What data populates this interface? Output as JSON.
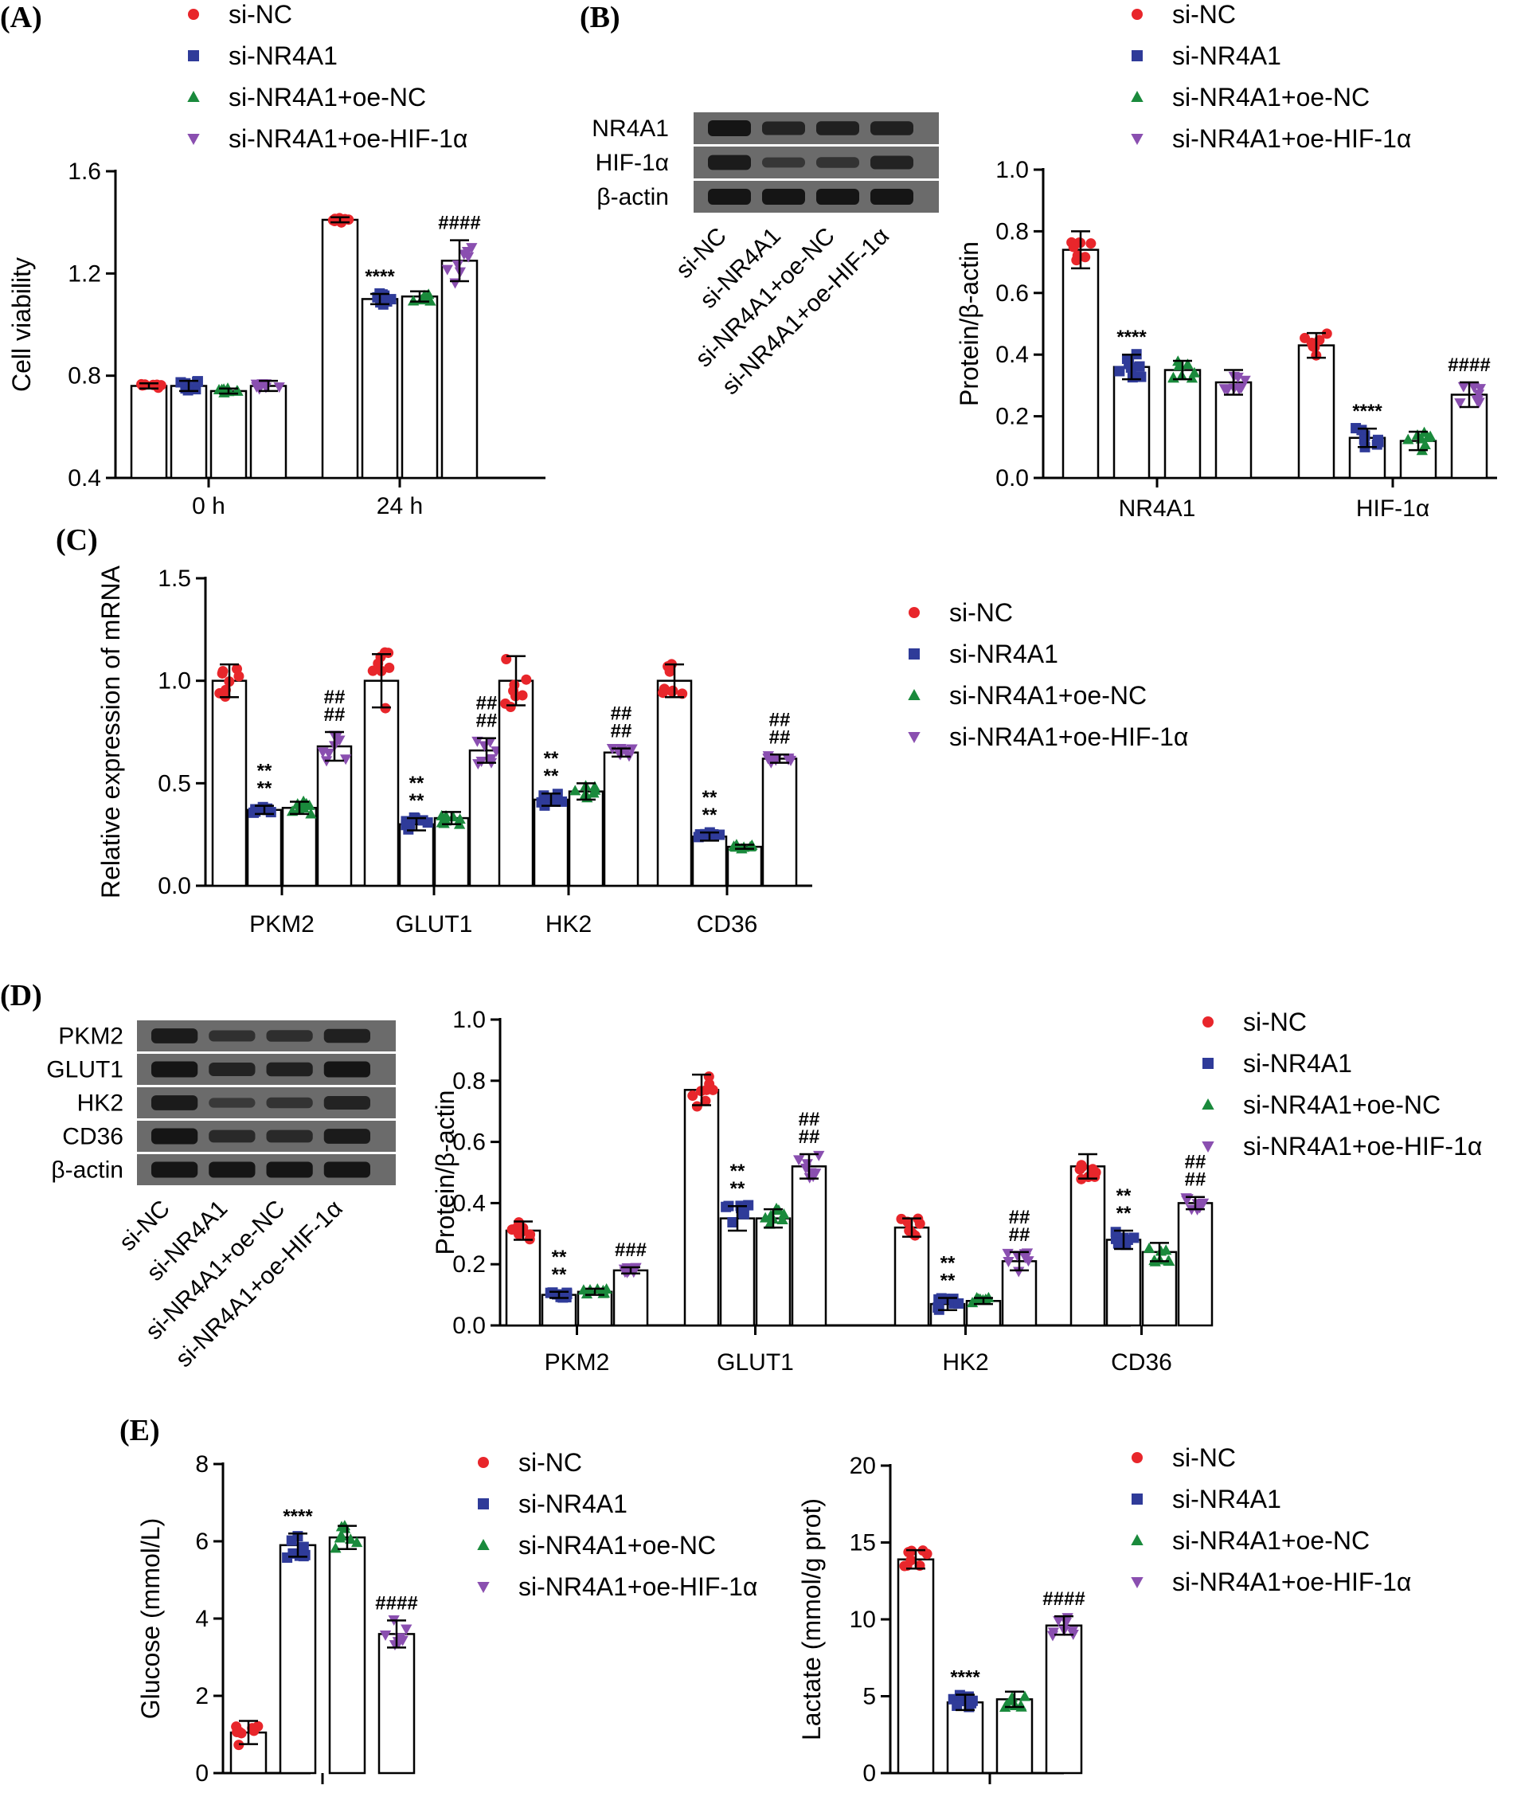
{
  "colors": {
    "si-NC": "#e8262b",
    "si-NR4A1": "#2f3b99",
    "si-NR4A1+oe-NC": "#1a8a3c",
    "si-NR4A1+oe-HIF-1α": "#8a4fb0"
  },
  "legend_entries": [
    "si-NC",
    "si-NR4A1",
    "si-NR4A1+oe-NC",
    "si-NR4A1+oe-HIF-1α"
  ],
  "panels": {
    "A": "(A)",
    "B": "(B)",
    "C": "(C)",
    "D": "(D)",
    "E": "(E)"
  },
  "blots": {
    "B": {
      "rows": [
        "NR4A1",
        "HIF-1α",
        "β-actin"
      ],
      "lanes": [
        "si-NC",
        "si-NR4A1",
        "si-NR4A1+oe-NC",
        "si-NR4A1+oe-HIF-1α"
      ],
      "intensity": [
        [
          1.0,
          0.75,
          0.8,
          0.8
        ],
        [
          0.9,
          0.4,
          0.45,
          0.75
        ],
        [
          1.0,
          1.0,
          1.0,
          1.0
        ]
      ]
    },
    "D": {
      "rows": [
        "PKM2",
        "GLUT1",
        "HK2",
        "CD36",
        "β-actin"
      ],
      "lanes": [
        "si-NC",
        "si-NR4A1",
        "si-NR4A1+oe-NC",
        "si-NR4A1+oe-HIF-1α"
      ],
      "intensity": [
        [
          0.9,
          0.5,
          0.55,
          0.8
        ],
        [
          1.0,
          0.75,
          0.8,
          1.0
        ],
        [
          0.9,
          0.35,
          0.45,
          0.75
        ],
        [
          1.0,
          0.65,
          0.65,
          0.9
        ],
        [
          1.0,
          1.0,
          1.0,
          1.0
        ]
      ]
    }
  },
  "chart_data": [
    {
      "id": "A",
      "type": "bar",
      "categories": [
        "0 h",
        "24 h"
      ],
      "series": [
        {
          "name": "si-NC",
          "values": [
            0.76,
            1.41
          ],
          "sd": [
            0.01,
            0.01
          ]
        },
        {
          "name": "si-NR4A1",
          "values": [
            0.76,
            1.1
          ],
          "sd": [
            0.02,
            0.02
          ]
        },
        {
          "name": "si-NR4A1+oe-NC",
          "values": [
            0.74,
            1.11
          ],
          "sd": [
            0.01,
            0.02
          ]
        },
        {
          "name": "si-NR4A1+oe-HIF-1α",
          "values": [
            0.76,
            1.25
          ],
          "sd": [
            0.02,
            0.08
          ]
        }
      ],
      "annotations": [
        [
          "",
          ""
        ],
        [
          "",
          "****"
        ],
        [
          "",
          ""
        ],
        [
          "",
          "####"
        ]
      ],
      "ylabel": "Cell viability",
      "xlabel": "",
      "ylim": [
        0.4,
        1.6
      ],
      "yticks": [
        "0.4",
        "0.8",
        "1.2",
        "1.6"
      ]
    },
    {
      "id": "B",
      "type": "bar",
      "categories": [
        "NR4A1",
        "HIF-1α"
      ],
      "series": [
        {
          "name": "si-NC",
          "values": [
            0.74,
            0.43
          ],
          "sd": [
            0.06,
            0.04
          ]
        },
        {
          "name": "si-NR4A1",
          "values": [
            0.36,
            0.13
          ],
          "sd": [
            0.04,
            0.03
          ]
        },
        {
          "name": "si-NR4A1+oe-NC",
          "values": [
            0.35,
            0.12
          ],
          "sd": [
            0.03,
            0.03
          ]
        },
        {
          "name": "si-NR4A1+oe-HIF-1α",
          "values": [
            0.31,
            0.27
          ],
          "sd": [
            0.04,
            0.04
          ]
        }
      ],
      "annotations": [
        [
          "",
          ""
        ],
        [
          "****",
          "****"
        ],
        [
          "",
          ""
        ],
        [
          "",
          "####"
        ]
      ],
      "ylabel": "Protein/β-actin",
      "xlabel": "",
      "ylim": [
        0.0,
        1.0
      ],
      "yticks": [
        "0.0",
        "0.2",
        "0.4",
        "0.6",
        "0.8",
        "1.0"
      ]
    },
    {
      "id": "C",
      "type": "bar",
      "categories": [
        "PKM2",
        "GLUT1",
        "HK2",
        "CD36"
      ],
      "series": [
        {
          "name": "si-NC",
          "values": [
            1.0,
            1.0,
            1.0,
            1.0
          ],
          "sd": [
            0.08,
            0.13,
            0.12,
            0.08
          ]
        },
        {
          "name": "si-NR4A1",
          "values": [
            0.37,
            0.3,
            0.42,
            0.24
          ],
          "sd": [
            0.02,
            0.03,
            0.03,
            0.02
          ]
        },
        {
          "name": "si-NR4A1+oe-NC",
          "values": [
            0.38,
            0.33,
            0.46,
            0.19
          ],
          "sd": [
            0.03,
            0.03,
            0.04,
            0.01
          ]
        },
        {
          "name": "si-NR4A1+oe-HIF-1α",
          "values": [
            0.68,
            0.66,
            0.65,
            0.62
          ],
          "sd": [
            0.07,
            0.06,
            0.02,
            0.02
          ]
        }
      ],
      "annotations": [
        [
          "",
          "",
          "",
          ""
        ],
        [
          "**\n**",
          "**\n**",
          "**\n**",
          "**\n**"
        ],
        [
          "",
          "",
          "",
          ""
        ],
        [
          "##\n##",
          "##\n##",
          "##\n##",
          "##\n##"
        ]
      ],
      "ylabel": "Relative expression of mRNA",
      "xlabel": "",
      "ylim": [
        0.0,
        1.5
      ],
      "yticks": [
        "0.0",
        "0.5",
        "1.0",
        "1.5"
      ]
    },
    {
      "id": "D",
      "type": "bar",
      "categories": [
        "PKM2",
        "GLUT1",
        "HK2",
        "CD36"
      ],
      "series": [
        {
          "name": "si-NC",
          "values": [
            0.31,
            0.77,
            0.32,
            0.52
          ],
          "sd": [
            0.03,
            0.05,
            0.03,
            0.04
          ]
        },
        {
          "name": "si-NR4A1",
          "values": [
            0.1,
            0.35,
            0.07,
            0.28
          ],
          "sd": [
            0.01,
            0.04,
            0.02,
            0.03
          ]
        },
        {
          "name": "si-NR4A1+oe-NC",
          "values": [
            0.11,
            0.35,
            0.08,
            0.24
          ],
          "sd": [
            0.01,
            0.03,
            0.01,
            0.03
          ]
        },
        {
          "name": "si-NR4A1+oe-HIF-1α",
          "values": [
            0.18,
            0.52,
            0.21,
            0.4
          ],
          "sd": [
            0.01,
            0.04,
            0.03,
            0.02
          ]
        }
      ],
      "annotations": [
        [
          "",
          "",
          "",
          ""
        ],
        [
          "**\n**",
          "**\n**",
          "**\n**",
          "**\n**"
        ],
        [
          "",
          "",
          "",
          ""
        ],
        [
          "###",
          "##\n##",
          "##\n##",
          "##\n##"
        ]
      ],
      "ylabel": "Protein/β-actin",
      "xlabel": "",
      "ylim": [
        0.0,
        1.0
      ],
      "yticks": [
        "0.0",
        "0.2",
        "0.4",
        "0.6",
        "0.8",
        "1.0"
      ]
    },
    {
      "id": "E1",
      "type": "bar",
      "categories": [
        ""
      ],
      "series": [
        {
          "name": "si-NC",
          "values": [
            1.05
          ],
          "sd": [
            0.3
          ]
        },
        {
          "name": "si-NR4A1",
          "values": [
            5.9
          ],
          "sd": [
            0.3
          ]
        },
        {
          "name": "si-NR4A1+oe-NC",
          "values": [
            6.1
          ],
          "sd": [
            0.3
          ]
        },
        {
          "name": "si-NR4A1+oe-HIF-1α",
          "values": [
            3.6
          ],
          "sd": [
            0.35
          ]
        }
      ],
      "annotations": [
        [
          ""
        ],
        [
          "****"
        ],
        [
          ""
        ],
        [
          "####"
        ]
      ],
      "ylabel": "Glucose (mmol/L)",
      "xlabel": "",
      "ylim": [
        0,
        8
      ],
      "yticks": [
        "0",
        "2",
        "4",
        "6",
        "8"
      ]
    },
    {
      "id": "E2",
      "type": "bar",
      "categories": [
        ""
      ],
      "series": [
        {
          "name": "si-NC",
          "values": [
            13.9
          ],
          "sd": [
            0.6
          ]
        },
        {
          "name": "si-NR4A1",
          "values": [
            4.6
          ],
          "sd": [
            0.5
          ]
        },
        {
          "name": "si-NR4A1+oe-NC",
          "values": [
            4.8
          ],
          "sd": [
            0.5
          ]
        },
        {
          "name": "si-NR4A1+oe-HIF-1α",
          "values": [
            9.6
          ],
          "sd": [
            0.6
          ]
        }
      ],
      "annotations": [
        [
          ""
        ],
        [
          "****"
        ],
        [
          ""
        ],
        [
          "####"
        ]
      ],
      "ylabel": "Lactate (mmol/g prot)",
      "xlabel": "",
      "ylim": [
        0,
        20
      ],
      "yticks": [
        "0",
        "5",
        "10",
        "15",
        "20"
      ]
    }
  ]
}
